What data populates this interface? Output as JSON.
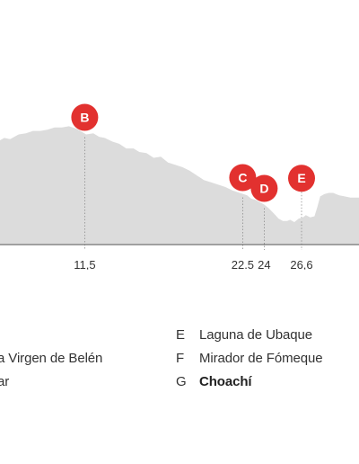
{
  "chart_data": {
    "type": "area",
    "x_unit": "km",
    "xlim": [
      5.6,
      30.6
    ],
    "ylim": [
      0,
      100
    ],
    "profile_x": [
      5.6,
      5.9,
      6.3,
      6.6,
      6.9,
      7.4,
      7.9,
      8.4,
      8.9,
      9.4,
      9.9,
      10.4,
      10.9,
      11.2,
      11.6,
      12.1,
      12.5,
      12.9,
      13.4,
      13.9,
      14.4,
      14.9,
      15.3,
      15.8,
      16.3,
      16.8,
      17.3,
      17.8,
      18.3,
      18.8,
      19.3,
      19.8,
      20.3,
      20.8,
      21.3,
      21.8,
      22.3,
      22.8,
      23.1,
      23.4,
      23.7,
      24.0,
      24.3,
      24.7,
      25.0,
      25.3,
      25.6,
      25.8,
      26.1,
      26.4,
      26.7,
      26.9,
      27.2,
      27.5,
      27.7,
      27.9,
      28.2,
      28.5,
      28.8,
      29.2,
      29.6,
      30.0,
      30.6
    ],
    "profile_y": [
      80,
      82,
      81,
      83,
      85,
      86,
      88,
      88,
      89,
      91,
      91,
      92,
      90,
      88,
      85,
      86,
      83,
      82,
      79,
      77,
      73,
      73,
      70,
      69,
      65,
      66,
      61,
      59,
      57,
      54,
      50,
      46,
      44,
      42,
      40,
      37,
      35,
      33,
      30,
      29,
      27,
      25,
      22,
      17,
      13,
      11,
      11,
      12,
      10,
      13,
      14,
      16,
      14,
      15,
      23,
      32,
      34,
      35,
      35,
      33,
      32,
      31,
      31
    ],
    "ticks": [
      {
        "x": 11.5,
        "label": "11,5"
      },
      {
        "x": 22.5,
        "label": "22.5"
      },
      {
        "x": 24,
        "label": "24"
      },
      {
        "x": 26.6,
        "label": "26,6"
      }
    ],
    "markers": [
      {
        "letter": "B",
        "x": 11.5
      },
      {
        "letter": "C",
        "x": 22.5
      },
      {
        "letter": "D",
        "x": 24
      },
      {
        "letter": "E",
        "x": 26.6
      }
    ],
    "legend_left": [
      {
        "letter": "",
        "text": "a Virgen de Belén"
      },
      {
        "letter": "",
        "text": "ar"
      }
    ],
    "legend_right": [
      {
        "letter": "E",
        "text": "Laguna de Ubaque",
        "bold": false
      },
      {
        "letter": "F",
        "text": "Mirador de Fómeque",
        "bold": false
      },
      {
        "letter": "G",
        "text": "Choachí",
        "bold": true
      }
    ]
  },
  "colors": {
    "area_fill": "#dcdcdc",
    "baseline": "#555555",
    "marker": "#e2312f",
    "guide": "#8c8c8c",
    "text": "#333333"
  }
}
